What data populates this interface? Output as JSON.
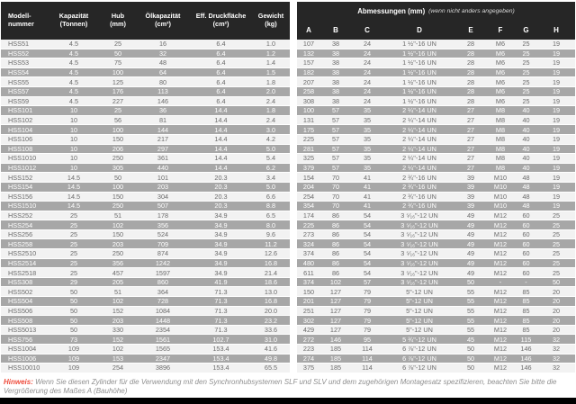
{
  "colors": {
    "header_bg": "#262626",
    "stripe_dark": "#a7a7a7",
    "stripe_light": "#f2f2f2",
    "note_label_red": "#ee4c3c",
    "bottom_bar": "#000000"
  },
  "left_table": {
    "headers": [
      {
        "line1": "Modell-",
        "line2": "nummer"
      },
      {
        "line1": "Kapazität",
        "line2": "(Tonnen)"
      },
      {
        "line1": "Hub",
        "line2": "(mm)"
      },
      {
        "line1": "Ölkapazität",
        "line2": "(cm³)"
      },
      {
        "line1": "Eff. Druckfläche",
        "line2": "(cm²)"
      },
      {
        "line1": "Gewicht",
        "line2": "(kg)"
      }
    ]
  },
  "right_table": {
    "title": "Abmessungen (mm)",
    "title_note": "(wenn nicht anders angegeben)",
    "headers": [
      "A",
      "B",
      "C",
      "D",
      "E",
      "F",
      "G",
      "H"
    ]
  },
  "rows": [
    [
      "HSS51",
      "4.5",
      "25",
      "16",
      "6.4",
      "1.0",
      "107",
      "38",
      "24",
      "1 ½\"-16 UN",
      "28",
      "M6",
      "25",
      "19"
    ],
    [
      "HSS52",
      "4.5",
      "50",
      "32",
      "6.4",
      "1.2",
      "132",
      "38",
      "24",
      "1 ½\"-16 UN",
      "28",
      "M6",
      "25",
      "19"
    ],
    [
      "HSS53",
      "4.5",
      "75",
      "48",
      "6.4",
      "1.4",
      "157",
      "38",
      "24",
      "1 ½\"-16 UN",
      "28",
      "M6",
      "25",
      "19"
    ],
    [
      "HSS54",
      "4.5",
      "100",
      "64",
      "6.4",
      "1.5",
      "182",
      "38",
      "24",
      "1 ½\"-16 UN",
      "28",
      "M6",
      "25",
      "19"
    ],
    [
      "HSS55",
      "4.5",
      "125",
      "80",
      "6.4",
      "1.8",
      "207",
      "38",
      "24",
      "1 ½\"-16 UN",
      "28",
      "M6",
      "25",
      "19"
    ],
    [
      "HSS57",
      "4.5",
      "176",
      "113",
      "6.4",
      "2.0",
      "258",
      "38",
      "24",
      "1 ½\"-16 UN",
      "28",
      "M6",
      "25",
      "19"
    ],
    [
      "HSS59",
      "4.5",
      "227",
      "146",
      "6.4",
      "2.4",
      "308",
      "38",
      "24",
      "1 ½\"-16 UN",
      "28",
      "M6",
      "25",
      "19"
    ],
    [
      "HSS101",
      "10",
      "25",
      "36",
      "14.4",
      "1.8",
      "100",
      "57",
      "35",
      "2 ¼\"-14 UN",
      "27",
      "M8",
      "40",
      "19"
    ],
    [
      "HSS102",
      "10",
      "56",
      "81",
      "14.4",
      "2.4",
      "131",
      "57",
      "35",
      "2 ¼\"-14 UN",
      "27",
      "M8",
      "40",
      "19"
    ],
    [
      "HSS104",
      "10",
      "100",
      "144",
      "14.4",
      "3.0",
      "175",
      "57",
      "35",
      "2 ¼\"-14 UN",
      "27",
      "M8",
      "40",
      "19"
    ],
    [
      "HSS106",
      "10",
      "150",
      "217",
      "14.4",
      "4.2",
      "225",
      "57",
      "35",
      "2 ¼\"-14 UN",
      "27",
      "M8",
      "40",
      "19"
    ],
    [
      "HSS108",
      "10",
      "206",
      "297",
      "14.4",
      "5.0",
      "281",
      "57",
      "35",
      "2 ¼\"-14 UN",
      "27",
      "M8",
      "40",
      "19"
    ],
    [
      "HSS1010",
      "10",
      "250",
      "361",
      "14.4",
      "5.4",
      "325",
      "57",
      "35",
      "2 ¼\"-14 UN",
      "27",
      "M8",
      "40",
      "19"
    ],
    [
      "HSS1012",
      "10",
      "305",
      "440",
      "14.4",
      "6.2",
      "379",
      "57",
      "35",
      "2 ¼\"-14 UN",
      "27",
      "M8",
      "40",
      "19"
    ],
    [
      "HSS152",
      "14.5",
      "50",
      "101",
      "20.3",
      "3.4",
      "154",
      "70",
      "41",
      "2 ¾\"-16 UN",
      "39",
      "M10",
      "48",
      "19"
    ],
    [
      "HSS154",
      "14.5",
      "100",
      "203",
      "20.3",
      "5.0",
      "204",
      "70",
      "41",
      "2 ¾\"-16 UN",
      "39",
      "M10",
      "48",
      "19"
    ],
    [
      "HSS156",
      "14.5",
      "150",
      "304",
      "20.3",
      "6.6",
      "254",
      "70",
      "41",
      "2 ¾\"-16 UN",
      "39",
      "M10",
      "48",
      "19"
    ],
    [
      "HSS1510",
      "14.5",
      "250",
      "507",
      "20.3",
      "8.8",
      "354",
      "70",
      "41",
      "2 ¾\"-16 UN",
      "39",
      "M10",
      "48",
      "19"
    ],
    [
      "HSS252",
      "25",
      "51",
      "178",
      "34.9",
      "6.5",
      "174",
      "86",
      "54",
      "3 ⁵⁄₁₆\"-12 UN",
      "49",
      "M12",
      "60",
      "25"
    ],
    [
      "HSS254",
      "25",
      "102",
      "356",
      "34.9",
      "8.0",
      "225",
      "86",
      "54",
      "3 ⁵⁄₁₆\"-12 UN",
      "49",
      "M12",
      "60",
      "25"
    ],
    [
      "HSS256",
      "25",
      "150",
      "524",
      "34.9",
      "9.6",
      "273",
      "86",
      "54",
      "3 ⁵⁄₁₆\"-12 UN",
      "49",
      "M12",
      "60",
      "25"
    ],
    [
      "HSS258",
      "25",
      "203",
      "709",
      "34.9",
      "11.2",
      "324",
      "86",
      "54",
      "3 ⁵⁄₁₆\"-12 UN",
      "49",
      "M12",
      "60",
      "25"
    ],
    [
      "HSS2510",
      "25",
      "250",
      "874",
      "34.9",
      "12.6",
      "374",
      "86",
      "54",
      "3 ⁵⁄₁₆\"-12 UN",
      "49",
      "M12",
      "60",
      "25"
    ],
    [
      "HSS2514",
      "25",
      "356",
      "1242",
      "34.9",
      "16.8",
      "480",
      "86",
      "54",
      "3 ⁵⁄₁₆\"-12 UN",
      "49",
      "M12",
      "60",
      "25"
    ],
    [
      "HSS2518",
      "25",
      "457",
      "1597",
      "34.9",
      "21.4",
      "611",
      "86",
      "54",
      "3 ⁵⁄₁₆\"-12 UN",
      "49",
      "M12",
      "60",
      "25"
    ],
    [
      "HSS308",
      "29",
      "205",
      "860",
      "41.9",
      "18.6",
      "374",
      "102",
      "57",
      "3 ⁵⁄₁₆\"-12 UN",
      "50",
      "-",
      "-",
      "50"
    ],
    [
      "HSS502",
      "50",
      "51",
      "364",
      "71.3",
      "13.0",
      "150",
      "127",
      "79",
      "5\"-12 UN",
      "55",
      "M12",
      "85",
      "20"
    ],
    [
      "HSS504",
      "50",
      "102",
      "728",
      "71.3",
      "16.8",
      "201",
      "127",
      "79",
      "5\"-12 UN",
      "55",
      "M12",
      "85",
      "20"
    ],
    [
      "HSS506",
      "50",
      "152",
      "1084",
      "71.3",
      "20.0",
      "251",
      "127",
      "79",
      "5\"-12 UN",
      "55",
      "M12",
      "85",
      "20"
    ],
    [
      "HSS508",
      "50",
      "203",
      "1448",
      "71.3",
      "23.2",
      "302",
      "127",
      "79",
      "5\"-12 UN",
      "55",
      "M12",
      "85",
      "20"
    ],
    [
      "HSS5013",
      "50",
      "330",
      "2354",
      "71.3",
      "33.6",
      "429",
      "127",
      "79",
      "5\"-12 UN",
      "55",
      "M12",
      "85",
      "20"
    ],
    [
      "HSS756",
      "73",
      "152",
      "1561",
      "102.7",
      "31.0",
      "272",
      "146",
      "95",
      "5 ¾\"-12 UN",
      "45",
      "M12",
      "115",
      "32"
    ],
    [
      "HSS1004",
      "109",
      "102",
      "1565",
      "153.4",
      "41.6",
      "223",
      "185",
      "114",
      "6 ⅞\"-12 UN",
      "50",
      "M12",
      "146",
      "32"
    ],
    [
      "HSS1006",
      "109",
      "153",
      "2347",
      "153.4",
      "49.8",
      "274",
      "185",
      "114",
      "6 ⅞\"-12 UN",
      "50",
      "M12",
      "146",
      "32"
    ],
    [
      "HSS10010",
      "109",
      "254",
      "3896",
      "153.4",
      "65.5",
      "375",
      "185",
      "114",
      "6 ⅞\"-12 UN",
      "50",
      "M12",
      "146",
      "32"
    ]
  ],
  "note": {
    "label": "Hinweis:",
    "text": " Wenn Sie diesen Zylinder für die Verwendung mit den Synchronhubsystemen SLF und SLV und dem zugehörigen Montagesatz spezifizieren, beachten Sie bitte die Vergrößerung des Maßes A (Bauhöhe)"
  }
}
